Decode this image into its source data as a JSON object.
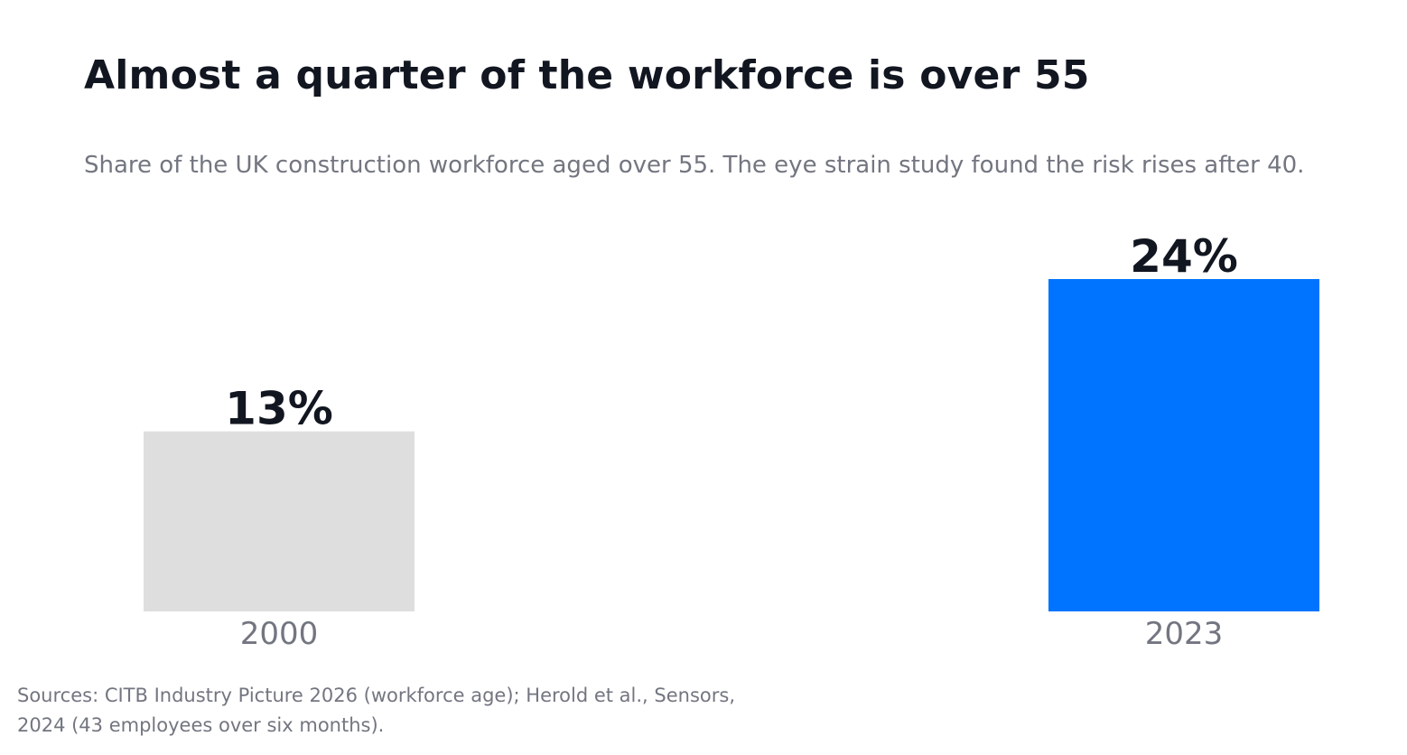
{
  "chart_data": {
    "type": "bar",
    "title": "Almost a quarter of the workforce is over 55",
    "subtitle": "Share of the UK construction workforce aged over 55. The eye strain study found the risk rises after 40.",
    "categories": [
      "2000",
      "2023"
    ],
    "values": [
      13,
      24
    ],
    "value_labels": [
      "13%",
      "24%"
    ],
    "value_unit": "%",
    "ylim": [
      0,
      24
    ],
    "xlabel": "",
    "ylabel": "",
    "grid": false,
    "legend": "none",
    "bar_colors": [
      "#DEDEDE",
      "#0074FF"
    ],
    "source": "Sources: CITB Industry Picture 2026 (workforce age); Herold et al., Sensors, 2024 (43 employees over six months)."
  }
}
